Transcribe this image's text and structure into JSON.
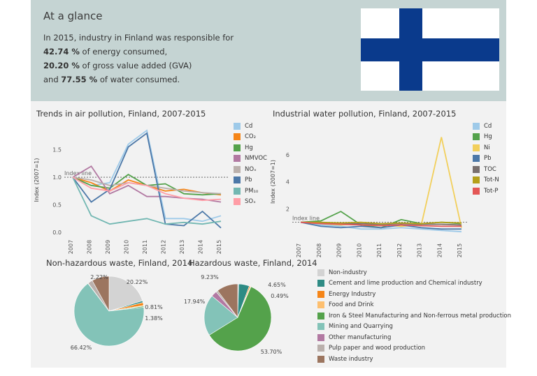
{
  "glance": {
    "title": "At a glance",
    "line1": "In 2015, industry in Finland was responsible for",
    "energy_pct": "42.74 %",
    "energy_text": " of energy consumed,",
    "gva_pct": "20.20 %",
    "gva_text": " of gross value added (GVA)",
    "water_prefix": "and ",
    "water_pct": "77.55 %",
    "water_text": " of water consumed."
  },
  "colors": {
    "flag_blue": "#0a3a8c",
    "glance_bg": "#c5d4d3",
    "section_bg": "#f2f2f2"
  },
  "chart_data": [
    {
      "type": "line",
      "title": "Trends in air pollution, Finland, 2007-2015",
      "ylabel": "Index (2007=1)",
      "ylim": [
        0,
        1.9
      ],
      "yticks": [
        "0.0",
        "0.5",
        "1.0",
        "1.5"
      ],
      "index_line_label": "Index line",
      "x": [
        "2007",
        "2008",
        "2009",
        "2010",
        "2011",
        "2012",
        "2013",
        "2014",
        "2015"
      ],
      "series": [
        {
          "name": "Cd",
          "color": "#9ecae9",
          "values": [
            1.0,
            0.85,
            0.9,
            1.6,
            1.85,
            0.25,
            0.25,
            0.2,
            0.3
          ]
        },
        {
          "name": "CO₂",
          "color": "#f58518",
          "values": [
            1.0,
            0.9,
            0.75,
            0.95,
            0.85,
            0.75,
            0.78,
            0.72,
            0.68
          ]
        },
        {
          "name": "Hg",
          "color": "#54a24b",
          "values": [
            1.0,
            0.85,
            0.8,
            1.05,
            0.85,
            0.88,
            0.7,
            0.68,
            0.7
          ]
        },
        {
          "name": "NMVOC",
          "color": "#b279a2",
          "values": [
            1.0,
            1.2,
            0.7,
            0.85,
            0.65,
            0.65,
            0.62,
            0.6,
            0.55
          ]
        },
        {
          "name": "NOₓ",
          "color": "#bab0ac",
          "values": [
            1.0,
            0.95,
            0.85,
            0.9,
            0.85,
            0.8,
            0.75,
            0.72,
            0.7
          ]
        },
        {
          "name": "Pb",
          "color": "#4c78a8",
          "values": [
            1.0,
            0.55,
            0.78,
            1.55,
            1.8,
            0.15,
            0.12,
            0.38,
            0.08
          ]
        },
        {
          "name": "PM₁₀",
          "color": "#72b7b2",
          "values": [
            1.0,
            0.3,
            0.15,
            0.2,
            0.25,
            0.15,
            0.18,
            0.15,
            0.2
          ]
        },
        {
          "name": "SOₓ",
          "color": "#ff9da6",
          "values": [
            1.0,
            0.8,
            0.75,
            0.9,
            0.85,
            0.7,
            0.62,
            0.58,
            0.6
          ]
        }
      ]
    },
    {
      "type": "line",
      "title": "Industrial water pollution, Finland, 2007-2015",
      "ylabel": "Index (2007=1)",
      "ylim": [
        0,
        8
      ],
      "yticks": [
        "2",
        "4",
        "6"
      ],
      "index_line_label": "Index line",
      "x": [
        "2007",
        "2008",
        "2009",
        "2010",
        "2011",
        "2012",
        "2013",
        "2014",
        "2015"
      ],
      "series": [
        {
          "name": "Cd",
          "color": "#9ecae9",
          "values": [
            1.0,
            0.8,
            0.7,
            0.5,
            0.5,
            0.6,
            0.5,
            0.4,
            0.3
          ]
        },
        {
          "name": "Hg",
          "color": "#54a24b",
          "values": [
            1.0,
            1.1,
            1.8,
            0.8,
            0.6,
            1.2,
            0.9,
            1.0,
            0.9
          ]
        },
        {
          "name": "Ni",
          "color": "#f2cf5b",
          "values": [
            1.0,
            0.9,
            0.8,
            0.9,
            0.8,
            0.7,
            0.8,
            7.3,
            0.6
          ]
        },
        {
          "name": "Pb",
          "color": "#4c78a8",
          "values": [
            1.0,
            0.7,
            0.6,
            0.7,
            0.6,
            0.8,
            0.6,
            0.5,
            0.5
          ]
        },
        {
          "name": "TOC",
          "color": "#79706e",
          "values": [
            1.0,
            0.95,
            0.9,
            0.9,
            0.85,
            0.9,
            0.85,
            0.85,
            0.8
          ]
        },
        {
          "name": "Tot-N",
          "color": "#b5a01a",
          "values": [
            1.0,
            1.0,
            0.95,
            1.0,
            0.9,
            0.95,
            0.9,
            1.0,
            0.95
          ]
        },
        {
          "name": "Tot-P",
          "color": "#e45756",
          "values": [
            1.0,
            0.9,
            0.85,
            0.8,
            0.75,
            0.8,
            0.75,
            0.7,
            0.7
          ]
        }
      ]
    },
    {
      "type": "pie",
      "title": "Non-hazardous waste, Finland, 2014",
      "slices": [
        {
          "name": "Non-industry",
          "value": 20.22,
          "label": "20.22%",
          "color": "#d3d3d3"
        },
        {
          "name": "Cement and lime production and Chemical industry",
          "value": 0.81,
          "label": "0.81%",
          "color": "#2e8b84"
        },
        {
          "name": "Energy Industry",
          "value": 1.38,
          "label": "1.38%",
          "color": "#f58518"
        },
        {
          "name": "Food and Drink",
          "value": 0.3,
          "label": "",
          "color": "#fdbf6f"
        },
        {
          "name": "Iron & Steel Manufacturing and Non-ferrous metal production",
          "value": 0.5,
          "label": "",
          "color": "#54a24b"
        },
        {
          "name": "Mining and Quarrying",
          "value": 66.42,
          "label": "66.42%",
          "color": "#83c3b8"
        },
        {
          "name": "Other manufacturing",
          "value": 0.15,
          "label": "",
          "color": "#b279a2"
        },
        {
          "name": "Pulp paper and wood production",
          "value": 2.22,
          "label": "2.22%",
          "color": "#bab0ac"
        },
        {
          "name": "Waste industry",
          "value": 7.99,
          "label": "",
          "color": "#9c755f"
        }
      ]
    },
    {
      "type": "pie",
      "title": "Hazardous waste, Finland, 2014",
      "slices": [
        {
          "name": "Non-industry",
          "value": 0.4,
          "label": "",
          "color": "#d3d3d3"
        },
        {
          "name": "Cement and lime production and Chemical industry",
          "value": 4.65,
          "label": "4.65%",
          "color": "#2e8b84"
        },
        {
          "name": "Energy Industry",
          "value": 0.49,
          "label": "0.49%",
          "color": "#f58518"
        },
        {
          "name": "Food and Drink",
          "value": 0.3,
          "label": "",
          "color": "#fdbf6f"
        },
        {
          "name": "Iron & Steel Manufacturing and Non-ferrous metal production",
          "value": 53.7,
          "label": "53.70%",
          "color": "#54a24b"
        },
        {
          "name": "Mining and Quarrying",
          "value": 17.94,
          "label": "17.94%",
          "color": "#83c3b8"
        },
        {
          "name": "Other manufacturing",
          "value": 2.5,
          "label": "",
          "color": "#b279a2"
        },
        {
          "name": "Pulp paper and wood production",
          "value": 0.8,
          "label": "",
          "color": "#bab0ac"
        },
        {
          "name": "Waste industry",
          "value": 9.23,
          "label": "9.23%",
          "color": "#9c755f"
        }
      ]
    }
  ],
  "waste_legend": [
    {
      "label": "Non-industry",
      "color": "#d3d3d3"
    },
    {
      "label": "Cement and lime production and Chemical industry",
      "color": "#2e8b84"
    },
    {
      "label": "Energy Industry",
      "color": "#f58518"
    },
    {
      "label": "Food and Drink",
      "color": "#fdbf6f"
    },
    {
      "label": "Iron & Steel Manufacturing and Non-ferrous metal production",
      "color": "#54a24b"
    },
    {
      "label": "Mining and Quarrying",
      "color": "#83c3b8"
    },
    {
      "label": "Other manufacturing",
      "color": "#b279a2"
    },
    {
      "label": "Pulp paper and wood production",
      "color": "#bab0ac"
    },
    {
      "label": "Waste industry",
      "color": "#9c755f"
    }
  ]
}
